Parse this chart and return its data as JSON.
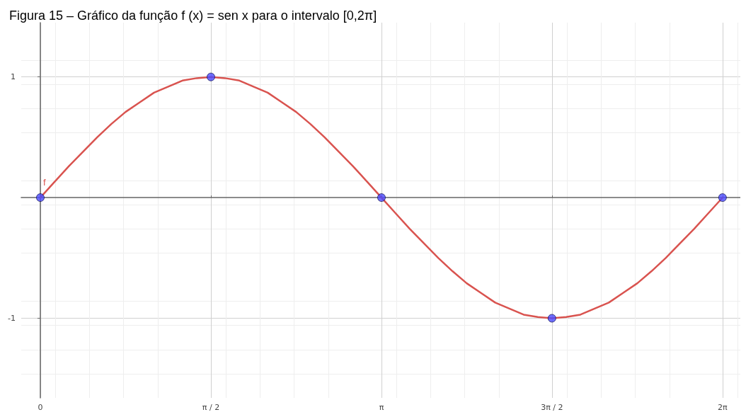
{
  "chart_data": {
    "type": "line",
    "title": "Figura 15 – Gráfico da função f (x) = sen x para o intervalo [0,2π]",
    "series": [
      {
        "name": "f",
        "color": "#d9534f",
        "marker": "none",
        "x": [
          0,
          0.131,
          0.262,
          0.393,
          0.524,
          0.654,
          0.785,
          0.916,
          1.047,
          1.178,
          1.309,
          1.44,
          1.571,
          1.702,
          1.833,
          1.963,
          2.094,
          2.225,
          2.356,
          2.487,
          2.618,
          2.749,
          2.88,
          3.011,
          3.142,
          3.272,
          3.403,
          3.534,
          3.665,
          3.796,
          3.927,
          4.058,
          4.189,
          4.32,
          4.451,
          4.581,
          4.712,
          4.843,
          4.974,
          5.105,
          5.236,
          5.367,
          5.498,
          5.629,
          5.76,
          5.89,
          6.021,
          6.152,
          6.283
        ],
        "values": [
          0,
          0.13,
          0.26,
          0.38,
          0.5,
          0.61,
          0.71,
          0.79,
          0.87,
          0.92,
          0.97,
          0.99,
          1,
          0.99,
          0.97,
          0.92,
          0.87,
          0.79,
          0.71,
          0.61,
          0.5,
          0.38,
          0.26,
          0.13,
          0,
          -0.13,
          -0.26,
          -0.38,
          -0.5,
          -0.61,
          -0.71,
          -0.79,
          -0.87,
          -0.92,
          -0.97,
          -0.99,
          -1,
          -0.99,
          -0.97,
          -0.92,
          -0.87,
          -0.79,
          -0.71,
          -0.61,
          -0.5,
          -0.38,
          -0.26,
          -0.13,
          0
        ]
      },
      {
        "type": "scatter",
        "color": "#4a4aff",
        "marker": "circle",
        "x": [
          0,
          1.571,
          3.142,
          4.712,
          6.283
        ],
        "values": [
          0,
          1,
          0,
          -1,
          0
        ]
      }
    ],
    "xlim": [
      -0.176,
      6.447
    ],
    "ylim": [
      -1.66,
      1.45
    ],
    "xticks": [
      {
        "value": 0,
        "label": "0"
      },
      {
        "value": 1.571,
        "label": "π / 2"
      },
      {
        "value": 3.142,
        "label": "π"
      },
      {
        "value": 4.712,
        "label": "3π / 2"
      },
      {
        "value": 6.283,
        "label": "2π"
      }
    ],
    "yticks": [
      -1,
      1
    ],
    "grid": true,
    "line_style": "solid"
  }
}
